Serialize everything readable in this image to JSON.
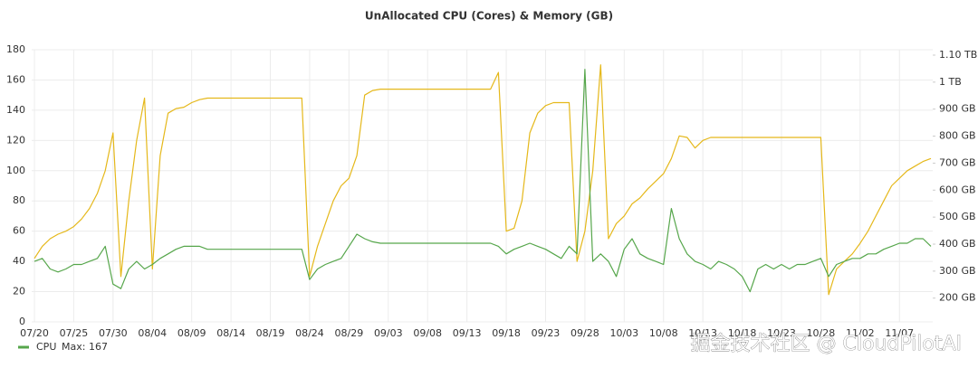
{
  "chart_data": {
    "type": "line",
    "title": "UnAllocated CPU (Cores) & Memory (GB)",
    "x": [
      "07/20",
      null,
      null,
      null,
      null,
      "07/25",
      null,
      null,
      null,
      null,
      "07/30",
      null,
      null,
      null,
      null,
      "08/04",
      null,
      null,
      null,
      null,
      "08/09",
      null,
      null,
      null,
      null,
      "08/14",
      null,
      null,
      null,
      null,
      "08/19",
      null,
      null,
      null,
      null,
      "08/24",
      null,
      null,
      null,
      null,
      "08/29",
      null,
      null,
      null,
      null,
      "09/03",
      null,
      null,
      null,
      null,
      "09/08",
      null,
      null,
      null,
      null,
      "09/13",
      null,
      null,
      null,
      null,
      "09/18",
      null,
      null,
      null,
      null,
      "09/23",
      null,
      null,
      null,
      null,
      "09/28",
      null,
      null,
      null,
      null,
      "10/03",
      null,
      null,
      null,
      null,
      "10/08",
      null,
      null,
      null,
      null,
      "10/13",
      null,
      null,
      null,
      null,
      "10/18",
      null,
      null,
      null,
      null,
      "10/23",
      null,
      null,
      null,
      null,
      "10/28",
      null,
      null,
      null,
      null,
      "11/02",
      null,
      null,
      null,
      null,
      "11/07",
      null,
      null,
      null,
      null
    ],
    "series": [
      {
        "name": "CPU",
        "color": "#56a64b",
        "values": [
          40,
          42,
          35,
          33,
          35,
          38,
          38,
          40,
          42,
          50,
          25,
          22,
          35,
          40,
          35,
          38,
          42,
          45,
          48,
          50,
          50,
          50,
          48,
          48,
          48,
          48,
          48,
          48,
          48,
          48,
          48,
          48,
          48,
          48,
          48,
          28,
          35,
          38,
          40,
          42,
          50,
          58,
          55,
          53,
          52,
          52,
          52,
          52,
          52,
          52,
          52,
          52,
          52,
          52,
          52,
          52,
          52,
          52,
          52,
          50,
          45,
          48,
          50,
          52,
          50,
          48,
          45,
          42,
          50,
          45,
          167,
          40,
          45,
          40,
          30,
          48,
          55,
          45,
          42,
          40,
          38,
          75,
          55,
          45,
          40,
          38,
          35,
          40,
          38,
          35,
          30,
          20,
          35,
          38,
          35,
          38,
          35,
          38,
          38,
          40,
          42,
          30,
          38,
          40,
          42,
          42,
          45,
          45,
          48,
          50,
          52,
          52,
          55,
          55,
          50
        ]
      },
      {
        "color": "#e5b81a",
        "axis": "y2",
        "values": [
          347,
          392,
          420,
          437,
          448,
          465,
          493,
          532,
          588,
          672,
          812,
          280,
          560,
          784,
          941,
          308,
          728,
          885,
          902,
          907,
          924,
          935,
          941,
          941,
          941,
          941,
          941,
          941,
          941,
          941,
          941,
          941,
          941,
          941,
          941,
          280,
          392,
          476,
          560,
          616,
          644,
          728,
          952,
          969,
          974,
          974,
          974,
          974,
          974,
          974,
          974,
          974,
          974,
          974,
          974,
          974,
          974,
          974,
          974,
          1036,
          448,
          459,
          560,
          812,
          885,
          913,
          924,
          924,
          924,
          336,
          448,
          672,
          1064,
          420,
          476,
          504,
          549,
          571,
          605,
          633,
          661,
          717,
          801,
          795,
          756,
          784,
          795,
          795,
          795,
          795,
          795,
          795,
          795,
          795,
          795,
          795,
          795,
          795,
          795,
          795,
          795,
          213,
          308,
          336,
          364,
          403,
          448,
          504,
          560,
          616,
          644,
          672,
          689,
          706,
          717
        ]
      }
    ],
    "ylim": [
      0,
      180
    ],
    "yticks": [
      0,
      20,
      40,
      60,
      80,
      100,
      120,
      140,
      160,
      180
    ],
    "y2lim": [
      112,
      1120
    ],
    "y2ticks": [
      {
        "value": 200,
        "label": "200 GB"
      },
      {
        "value": 300,
        "label": "300 GB"
      },
      {
        "value": 400,
        "label": "400 GB"
      },
      {
        "value": 500,
        "label": "500 GB"
      },
      {
        "value": 600,
        "label": "600 GB"
      },
      {
        "value": 700,
        "label": "700 GB"
      },
      {
        "value": 800,
        "label": "800 GB"
      },
      {
        "value": 900,
        "label": "900 GB"
      },
      {
        "value": 1000,
        "label": "1 TB"
      },
      {
        "value": 1100,
        "label": "1.10 TB"
      }
    ],
    "grid": true,
    "legend_stat": "Max: 167",
    "watermark": "掘金技术社区 @ CloudPilotAI"
  }
}
